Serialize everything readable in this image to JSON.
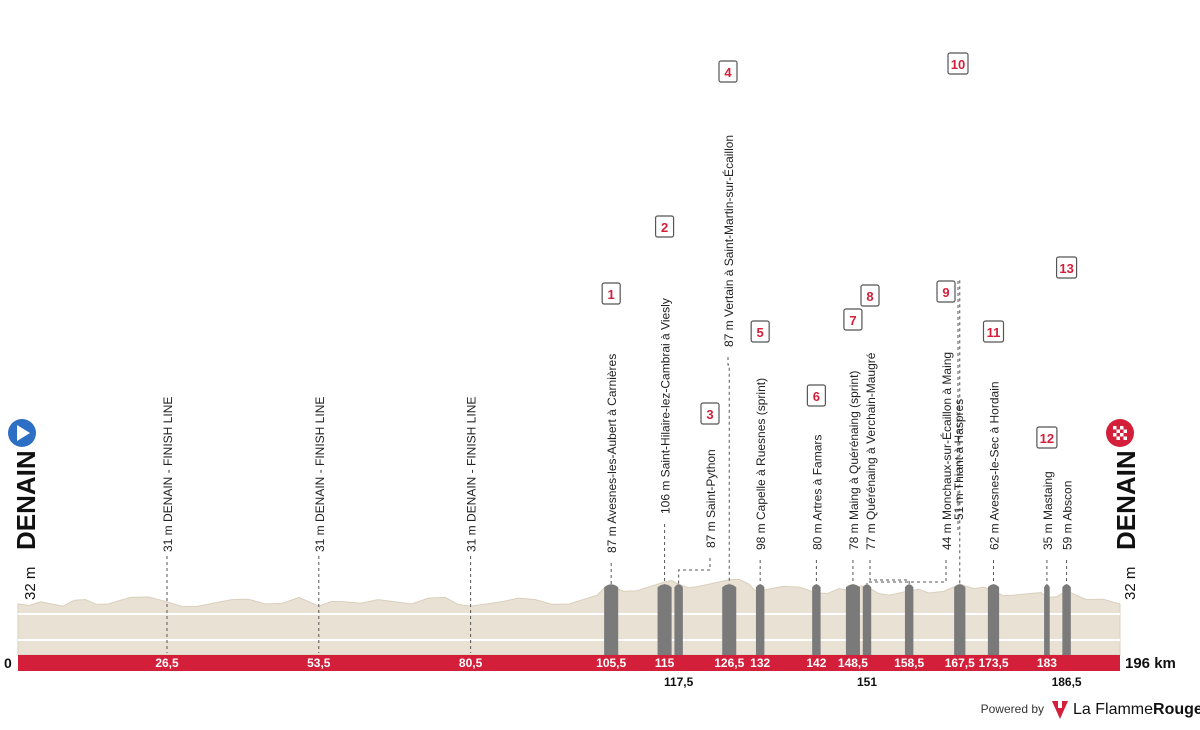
{
  "chart_data": {
    "type": "area",
    "x_unit": "km",
    "xlim": [
      0,
      196
    ],
    "start": {
      "name": "DENAIN",
      "altitude": "32 m",
      "km": "0"
    },
    "finish": {
      "name": "DENAIN",
      "altitude": "32 m",
      "km": "196 km"
    },
    "km_ticks": [
      {
        "km": 26.5,
        "label": "26,5",
        "row": 1
      },
      {
        "km": 53.5,
        "label": "53,5",
        "row": 1
      },
      {
        "km": 80.5,
        "label": "80,5",
        "row": 1
      },
      {
        "km": 105.5,
        "label": "105,5",
        "row": 1
      },
      {
        "km": 115,
        "label": "115",
        "row": 1
      },
      {
        "km": 117.5,
        "label": "117,5",
        "row": 2
      },
      {
        "km": 126.5,
        "label": "126,5",
        "row": 1
      },
      {
        "km": 132,
        "label": "132",
        "row": 1
      },
      {
        "km": 142,
        "label": "142",
        "row": 1
      },
      {
        "km": 148.5,
        "label": "148,5",
        "row": 1
      },
      {
        "km": 151,
        "label": "151",
        "row": 2
      },
      {
        "km": 158.5,
        "label": "158,5",
        "row": 1
      },
      {
        "km": 167.5,
        "label": "167,5",
        "row": 1
      },
      {
        "km": 173.5,
        "label": "173,5",
        "row": 1
      },
      {
        "km": 183,
        "label": "183",
        "row": 1
      },
      {
        "km": 186.5,
        "label": "186,5",
        "row": 2
      }
    ],
    "finish_line_passes": [
      {
        "km": 26.5,
        "label": "31 m DENAIN - FINISH LINE"
      },
      {
        "km": 53.5,
        "label": "31 m DENAIN - FINISH LINE"
      },
      {
        "km": 80.5,
        "label": "31 m DENAIN - FINISH LINE"
      }
    ],
    "sectors": [
      {
        "number": "1",
        "km": 105.5,
        "length_km": 2.5,
        "label": "87 m Avesnes-les-Aubert à Carnières",
        "category": "major"
      },
      {
        "number": "2",
        "km": 115,
        "length_km": 2.5,
        "label": "106 m Saint-Hilaire-lez-Cambrai à Viesly",
        "category": "major"
      },
      {
        "number": "3",
        "km": 117.5,
        "length_km": 1.5,
        "label": "87 m Saint-Python",
        "category": "major"
      },
      {
        "number": "4",
        "km": 126.5,
        "length_km": 2.5,
        "label": "87 m Vertain à Saint-Martin-sur-Écaillon",
        "category": "major"
      },
      {
        "number": "5",
        "km": 132,
        "length_km": 1.5,
        "label": "98 m Capelle à Ruesnes (sprint)",
        "category": "major"
      },
      {
        "number": "6",
        "km": 142,
        "length_km": 1.5,
        "label": "80 m Artres à Famars",
        "category": "major"
      },
      {
        "number": "7",
        "km": 148.5,
        "length_km": 2.5,
        "label": "78 m Maing à Quérénaing (sprint)",
        "category": "major"
      },
      {
        "number": "8",
        "km": 158.5,
        "length_km": 1.5,
        "label": "77 m Quérénaing à Verchain-Maugré",
        "category": "major"
      },
      {
        "number": "9",
        "km": 151,
        "length_km": 1.5,
        "label": "44 m Monchaux-sur-Écaillon à Maing",
        "category": "major"
      },
      {
        "number": "10",
        "km": 167.5,
        "length_km": 2,
        "label": "51 m Thiant à Haspres",
        "category": "major"
      },
      {
        "number": "11",
        "km": 173.5,
        "length_km": 2,
        "label": "62 m Avesnes-le-Sec à Hordain",
        "category": "major"
      },
      {
        "number": "12",
        "km": 183,
        "length_km": 1,
        "label": "35 m Mastaing",
        "category": "major"
      },
      {
        "number": "13",
        "km": 186.5,
        "length_km": 1.5,
        "label": "59 m Abscon",
        "category": "major"
      }
    ],
    "profile": {
      "base_altitude_m": 32,
      "km": [
        0,
        4,
        8,
        12,
        16,
        20,
        26.5,
        32,
        38,
        44,
        50,
        53.5,
        58,
        64,
        70,
        76,
        80.5,
        86,
        92,
        98,
        103,
        105.5,
        110,
        115,
        117.5,
        121,
        126.5,
        130,
        132,
        136,
        142,
        146,
        148.5,
        151,
        155,
        158.5,
        162,
        167.5,
        170,
        173.5,
        177,
        181,
        183,
        186.5,
        190,
        196
      ],
      "alt_m": [
        32,
        33,
        31,
        34,
        32,
        35,
        33,
        31,
        34,
        32,
        35,
        31,
        33,
        34,
        32,
        35,
        31,
        33,
        34,
        32,
        36,
        40,
        38,
        42,
        41,
        40,
        43,
        41,
        38,
        40,
        37,
        39,
        38,
        40,
        36,
        38,
        37,
        41,
        39,
        38,
        36,
        37,
        35,
        38,
        34,
        32
      ]
    },
    "grid_lines": 2,
    "colors": {
      "profile_fill": "#e9e1d3",
      "profile_edge": "#d9cfbd",
      "km_bar": "#d31f3a",
      "sector_fill": "#7a7a7a",
      "sector_badge_border": "#555555",
      "sector_badge_text": "#d31f3a",
      "start_icon": "#2d6fc4",
      "finish_icon": "#d31f3a"
    }
  },
  "branding": {
    "powered_by": "Powered by",
    "brand_prefix": "La Flamme",
    "brand_suffix": "Rouge"
  }
}
